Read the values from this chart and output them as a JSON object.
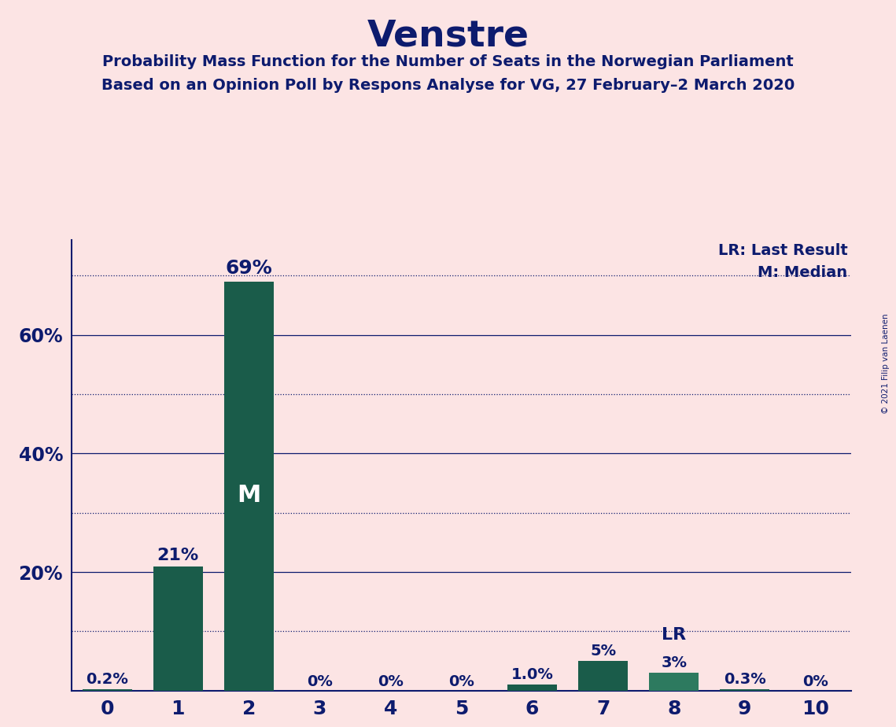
{
  "title": "Venstre",
  "subtitle_line1": "Probability Mass Function for the Number of Seats in the Norwegian Parliament",
  "subtitle_line2": "Based on an Opinion Poll by Respons Analyse for VG, 27 February–2 March 2020",
  "copyright_text": "© 2021 Filip van Laenen",
  "categories": [
    0,
    1,
    2,
    3,
    4,
    5,
    6,
    7,
    8,
    9,
    10
  ],
  "values": [
    0.002,
    0.21,
    0.69,
    0.0,
    0.0,
    0.0,
    0.01,
    0.05,
    0.03,
    0.003,
    0.0
  ],
  "bar_labels": [
    "0.2%",
    "21%",
    "69%",
    "0%",
    "0%",
    "0%",
    "1.0%",
    "5%",
    "3%",
    "0.3%",
    "0%"
  ],
  "bar_color_dark": "#1a5c4a",
  "bar_color_medium": "#2d7a5f",
  "background_color": "#fce4e4",
  "text_color": "#0d1b6e",
  "white": "#ffffff",
  "median_bar": 2,
  "lr_bar": 8,
  "legend_lr": "LR: Last Result",
  "legend_m": "M: Median",
  "ylim": [
    0,
    0.76
  ],
  "ytick_positions": [
    0.2,
    0.4,
    0.6
  ],
  "ytick_labels": [
    "20%",
    "40%",
    "60%"
  ],
  "grid_solid_ticks": [
    0.2,
    0.4,
    0.6
  ],
  "grid_dotted_ticks": [
    0.1,
    0.3,
    0.5,
    0.7
  ]
}
